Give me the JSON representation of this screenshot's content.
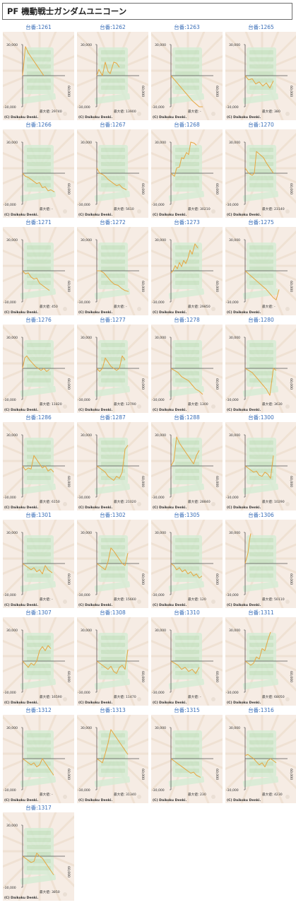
{
  "page": {
    "title": "PF 機動戦士ガンダムユニコーン"
  },
  "colors": {
    "line": "#e6a640",
    "background": "#f6ece4",
    "decor": "#d7ecd5",
    "label": "#3b6fb8",
    "axis": "#555555"
  },
  "panel_text": {
    "ymax_tick": "30,000",
    "ymin_tick": "-30,000",
    "x_tick": "60,000",
    "max_label": "最大値：",
    "copyright": "(C) Daikoku Denki."
  },
  "chart_data": [
    {
      "type": "line",
      "label": "台番:1261",
      "max_value": "29740",
      "ylim": [
        -30000,
        30000
      ],
      "xlim": [
        0,
        60000
      ],
      "x": [
        0,
        4000,
        8000,
        12000,
        16000,
        20000,
        26000,
        30000
      ],
      "y": [
        0,
        28000,
        22000,
        18000,
        14000,
        10000,
        4000,
        0
      ]
    },
    {
      "type": "line",
      "label": "台番:1262",
      "max_value": "13900",
      "ylim": [
        -30000,
        30000
      ],
      "xlim": [
        0,
        60000
      ],
      "x": [
        0,
        3000,
        8000,
        12000,
        16000,
        19000,
        24000,
        28000,
        32000
      ],
      "y": [
        0,
        6000,
        0,
        13000,
        4000,
        2000,
        13000,
        12000,
        8000
      ]
    },
    {
      "type": "line",
      "label": "台番:1263",
      "max_value": "-",
      "ylim": [
        -30000,
        30000
      ],
      "xlim": [
        0,
        60000
      ],
      "x": [
        0,
        10000,
        20000,
        30000,
        40000,
        45000
      ],
      "y": [
        0,
        -8000,
        -16000,
        -24000,
        -30000,
        -30000
      ]
    },
    {
      "type": "line",
      "label": "台番:1265",
      "max_value": "380",
      "ylim": [
        -30000,
        30000
      ],
      "xlim": [
        0,
        60000
      ],
      "x": [
        0,
        5000,
        10000,
        15000,
        20000,
        25000,
        30000,
        35000,
        40000
      ],
      "y": [
        0,
        -4000,
        -3000,
        -8000,
        -6000,
        -10000,
        -7000,
        -12000,
        -5000
      ]
    },
    {
      "type": "line",
      "label": "台番:1266",
      "max_value": "-",
      "ylim": [
        -30000,
        30000
      ],
      "xlim": [
        0,
        60000
      ],
      "x": [
        0,
        4000,
        8000,
        12000,
        16000,
        20000,
        24000,
        28000,
        32000,
        36000,
        40000,
        45000
      ],
      "y": [
        0,
        -3000,
        -4000,
        -6000,
        -8000,
        -10000,
        -9000,
        -14000,
        -13000,
        -17000,
        -16000,
        -18000
      ]
    },
    {
      "type": "line",
      "label": "台番:1267",
      "max_value": "5610",
      "ylim": [
        -30000,
        30000
      ],
      "xlim": [
        0,
        60000
      ],
      "x": [
        0,
        4000,
        8000,
        12000,
        16000,
        20000,
        24000,
        28000,
        32000,
        36000,
        42000
      ],
      "y": [
        5000,
        0,
        -1000,
        -3000,
        -6000,
        -8000,
        -10000,
        -12000,
        -11000,
        -14000,
        -16000
      ]
    },
    {
      "type": "line",
      "label": "台番:1268",
      "max_value": "30210",
      "ylim": [
        -30000,
        30000
      ],
      "xlim": [
        0,
        60000
      ],
      "x": [
        0,
        5000,
        8000,
        12000,
        15000,
        18000,
        22000,
        25000,
        28000,
        33000,
        36000
      ],
      "y": [
        0,
        -3000,
        5000,
        6000,
        15000,
        14000,
        20000,
        18000,
        30000,
        29000,
        27000
      ]
    },
    {
      "type": "line",
      "label": "台番:1270",
      "max_value": "23140",
      "ylim": [
        -30000,
        30000
      ],
      "xlim": [
        0,
        60000
      ],
      "x": [
        0,
        5000,
        10000,
        13000,
        16000,
        21000,
        26000,
        30000,
        35000,
        40000
      ],
      "y": [
        5000,
        0,
        -2000,
        0,
        21000,
        18000,
        15000,
        10000,
        5000,
        0
      ]
    },
    {
      "type": "line",
      "label": "台番:1271",
      "max_value": "450",
      "ylim": [
        -30000,
        30000
      ],
      "xlim": [
        0,
        60000
      ],
      "x": [
        0,
        4000,
        8000,
        12000,
        16000,
        20000,
        24000,
        28000,
        32000,
        38000
      ],
      "y": [
        0,
        -3000,
        -2000,
        -6000,
        -8000,
        -7000,
        -12000,
        -14000,
        -16000,
        -19000
      ]
    },
    {
      "type": "line",
      "label": "台番:1272",
      "max_value": "-",
      "ylim": [
        -30000,
        30000
      ],
      "xlim": [
        0,
        60000
      ],
      "x": [
        0,
        5000,
        10000,
        15000,
        20000,
        25000,
        30000,
        35000,
        40000,
        45000
      ],
      "y": [
        0,
        0,
        -2000,
        -6000,
        -10000,
        -13000,
        -14000,
        -17000,
        -19000,
        -20000
      ]
    },
    {
      "type": "line",
      "label": "台番:1273",
      "max_value": "29850",
      "ylim": [
        -30000,
        30000
      ],
      "xlim": [
        0,
        60000
      ],
      "x": [
        0,
        3000,
        6000,
        9000,
        12000,
        15000,
        18000,
        21000,
        24000,
        27000,
        30000,
        34000,
        38000
      ],
      "y": [
        -2000,
        0,
        5000,
        2000,
        8000,
        4000,
        10000,
        7000,
        12000,
        20000,
        16000,
        26000,
        22000
      ]
    },
    {
      "type": "line",
      "label": "台番:1275",
      "max_value": "-",
      "ylim": [
        -30000,
        30000
      ],
      "xlim": [
        0,
        60000
      ],
      "x": [
        0,
        10000,
        20000,
        30000,
        40000,
        44000,
        48000
      ],
      "y": [
        0,
        -6000,
        -12000,
        -18000,
        -26000,
        -28000,
        -18000
      ]
    },
    {
      "type": "line",
      "label": "台番:1276",
      "max_value": "11820",
      "ylim": [
        -30000,
        30000
      ],
      "xlim": [
        0,
        60000
      ],
      "x": [
        0,
        3000,
        6000,
        10000,
        14000,
        18000,
        22000,
        26000,
        30000,
        34000,
        38000
      ],
      "y": [
        0,
        10000,
        12000,
        8000,
        5000,
        2000,
        0,
        -2000,
        0,
        -3000,
        -1000
      ]
    },
    {
      "type": "line",
      "label": "台番:1277",
      "max_value": "12790",
      "ylim": [
        -30000,
        30000
      ],
      "xlim": [
        0,
        60000
      ],
      "x": [
        0,
        4000,
        8000,
        12000,
        16000,
        20000,
        24000,
        28000,
        32000,
        36000,
        40000
      ],
      "y": [
        0,
        -3000,
        0,
        10000,
        6000,
        2000,
        0,
        -2000,
        0,
        12000,
        8000
      ]
    },
    {
      "type": "line",
      "label": "台番:1278",
      "max_value": "1300",
      "ylim": [
        -30000,
        30000
      ],
      "xlim": [
        0,
        60000
      ],
      "x": [
        0,
        5000,
        10000,
        15000,
        20000,
        25000,
        30000,
        35000,
        40000,
        45000
      ],
      "y": [
        0,
        -2000,
        -4000,
        -8000,
        -10000,
        -12000,
        -16000,
        -20000,
        -22000,
        -25000
      ]
    },
    {
      "type": "line",
      "label": "台番:1280",
      "max_value": "3630",
      "ylim": [
        -30000,
        30000
      ],
      "xlim": [
        0,
        60000
      ],
      "x": [
        0,
        5000,
        10000,
        15000,
        20000,
        25000,
        30000,
        35000,
        40000,
        44000
      ],
      "y": [
        0,
        -2000,
        -4000,
        -8000,
        -12000,
        -16000,
        -20000,
        -26000,
        0,
        -2000
      ]
    },
    {
      "type": "line",
      "label": "台番:1286",
      "max_value": "6150",
      "ylim": [
        -30000,
        30000
      ],
      "xlim": [
        0,
        60000
      ],
      "x": [
        0,
        4000,
        8000,
        12000,
        16000,
        20000,
        24000,
        28000,
        32000,
        36000,
        40000,
        44000
      ],
      "y": [
        0,
        -4000,
        -2000,
        -3000,
        10000,
        6000,
        2000,
        -2000,
        0,
        -5000,
        -3000,
        -6000
      ]
    },
    {
      "type": "line",
      "label": "台番:1287",
      "max_value": "21020",
      "ylim": [
        -30000,
        30000
      ],
      "xlim": [
        0,
        60000
      ],
      "x": [
        0,
        4000,
        8000,
        12000,
        16000,
        20000,
        24000,
        28000,
        32000,
        36000,
        40000,
        44000
      ],
      "y": [
        0,
        -2000,
        -4000,
        -6000,
        -10000,
        -12000,
        -14000,
        -10000,
        -12000,
        -6000,
        16000,
        20000
      ]
    },
    {
      "type": "line",
      "label": "台番:1288",
      "max_value": "28840",
      "ylim": [
        -30000,
        30000
      ],
      "xlim": [
        0,
        60000
      ],
      "x": [
        0,
        4000,
        8000,
        12000,
        16000,
        20000,
        24000,
        28000,
        32000,
        36000,
        40000
      ],
      "y": [
        0,
        5000,
        28000,
        22000,
        18000,
        14000,
        10000,
        6000,
        2000,
        10000,
        15000
      ]
    },
    {
      "type": "line",
      "label": "台番:1300",
      "max_value": "10290",
      "ylim": [
        -30000,
        30000
      ],
      "xlim": [
        0,
        60000
      ],
      "x": [
        0,
        4000,
        8000,
        12000,
        16000,
        20000,
        24000,
        28000,
        32000,
        36000,
        40000
      ],
      "y": [
        0,
        -2000,
        -4000,
        -6000,
        -5000,
        -9000,
        -10000,
        -6000,
        -8000,
        -12000,
        10000
      ]
    },
    {
      "type": "line",
      "label": "台番:1301",
      "max_value": "-",
      "ylim": [
        -30000,
        30000
      ],
      "xlim": [
        0,
        60000
      ],
      "x": [
        0,
        4000,
        8000,
        12000,
        16000,
        20000,
        24000,
        28000,
        32000,
        36000,
        42000
      ],
      "y": [
        0,
        -2000,
        -4000,
        -6000,
        -4000,
        -8000,
        -6000,
        -10000,
        -2000,
        -6000,
        -9000
      ]
    },
    {
      "type": "line",
      "label": "台番:1302",
      "max_value": "15660",
      "ylim": [
        -30000,
        30000
      ],
      "xlim": [
        0,
        60000
      ],
      "x": [
        0,
        4000,
        8000,
        12000,
        16000,
        20000,
        24000,
        28000,
        32000,
        36000,
        40000,
        44000
      ],
      "y": [
        0,
        -2000,
        -4000,
        -6000,
        2000,
        15000,
        12000,
        8000,
        4000,
        0,
        -2000,
        10000
      ]
    },
    {
      "type": "line",
      "label": "台番:1305",
      "max_value": "120",
      "ylim": [
        -30000,
        30000
      ],
      "xlim": [
        0,
        60000
      ],
      "x": [
        0,
        4000,
        8000,
        12000,
        16000,
        20000,
        24000,
        28000,
        32000,
        36000,
        40000,
        44000
      ],
      "y": [
        0,
        -2000,
        -6000,
        -4000,
        -8000,
        -6000,
        -10000,
        -8000,
        -12000,
        -10000,
        -14000,
        -12000
      ]
    },
    {
      "type": "line",
      "label": "台番:1306",
      "max_value": "50110",
      "ylim": [
        -30000,
        30000
      ],
      "xlim": [
        0,
        60000
      ],
      "x": [
        0,
        2000,
        4000,
        6000,
        8000
      ],
      "y": [
        0,
        5000,
        10000,
        22000,
        29000
      ]
    },
    {
      "type": "line",
      "label": "台番:1307",
      "max_value": "16590",
      "ylim": [
        -30000,
        30000
      ],
      "xlim": [
        0,
        60000
      ],
      "x": [
        0,
        4000,
        8000,
        12000,
        16000,
        20000,
        24000,
        28000,
        32000,
        36000,
        40000
      ],
      "y": [
        0,
        -3000,
        -6000,
        -2000,
        -4000,
        0,
        10000,
        14000,
        10000,
        15000,
        12000
      ]
    },
    {
      "type": "line",
      "label": "台番:1308",
      "max_value": "11470",
      "ylim": [
        -30000,
        30000
      ],
      "xlim": [
        0,
        60000
      ],
      "x": [
        0,
        4000,
        8000,
        12000,
        16000,
        20000,
        24000,
        28000,
        32000,
        36000,
        40000,
        44000
      ],
      "y": [
        0,
        -2000,
        -4000,
        -6000,
        -8000,
        -5000,
        -10000,
        -12000,
        -6000,
        -4000,
        -8000,
        11000
      ]
    },
    {
      "type": "line",
      "label": "台番:1310",
      "max_value": "-",
      "ylim": [
        -30000,
        30000
      ],
      "xlim": [
        0,
        60000
      ],
      "x": [
        0,
        5000,
        10000,
        15000,
        20000,
        25000,
        30000,
        35000,
        40000
      ],
      "y": [
        0,
        -2000,
        -4000,
        -8000,
        -6000,
        -10000,
        -8000,
        -12000,
        -6000
      ]
    },
    {
      "type": "line",
      "label": "台番:1311",
      "max_value": "68050",
      "ylim": [
        -30000,
        30000
      ],
      "xlim": [
        0,
        60000
      ],
      "x": [
        0,
        4000,
        8000,
        12000,
        16000,
        20000,
        24000,
        28000,
        32000,
        36000
      ],
      "y": [
        0,
        -2000,
        -4000,
        -2000,
        4000,
        2000,
        12000,
        10000,
        20000,
        28000
      ]
    },
    {
      "type": "line",
      "label": "台番:1312",
      "max_value": "-",
      "ylim": [
        -30000,
        30000
      ],
      "xlim": [
        0,
        60000
      ],
      "x": [
        0,
        4000,
        8000,
        12000,
        16000,
        20000,
        24000,
        28000,
        32000,
        36000,
        40000,
        44000
      ],
      "y": [
        0,
        -2000,
        -4000,
        -6000,
        -4000,
        -8000,
        -6000,
        0,
        -4000,
        -8000,
        -12000,
        -16000
      ]
    },
    {
      "type": "line",
      "label": "台番:1313",
      "max_value": "31340",
      "ylim": [
        -30000,
        30000
      ],
      "xlim": [
        0,
        60000
      ],
      "x": [
        0,
        4000,
        8000,
        12000,
        16000,
        20000,
        24000,
        28000,
        32000,
        36000,
        40000,
        44000
      ],
      "y": [
        0,
        -2000,
        -4000,
        5000,
        15000,
        28000,
        24000,
        20000,
        16000,
        12000,
        8000,
        4000
      ]
    },
    {
      "type": "line",
      "label": "台番:1315",
      "max_value": "230",
      "ylim": [
        -30000,
        30000
      ],
      "xlim": [
        0,
        60000
      ],
      "x": [
        0,
        4000,
        8000,
        12000,
        16000,
        20000,
        24000,
        28000,
        32000,
        36000,
        42000
      ],
      "y": [
        0,
        -2000,
        -4000,
        -6000,
        -8000,
        -10000,
        -12000,
        -14000,
        -13000,
        -16000,
        -18000
      ]
    },
    {
      "type": "line",
      "label": "台番:1316",
      "max_value": "4230",
      "ylim": [
        -30000,
        30000
      ],
      "xlim": [
        0,
        60000
      ],
      "x": [
        0,
        4000,
        8000,
        12000,
        16000,
        20000,
        24000,
        28000,
        32000,
        36000,
        40000,
        44000
      ],
      "y": [
        3000,
        4000,
        2000,
        0,
        -3000,
        -6000,
        -4000,
        -8000,
        -2000,
        0,
        -2000,
        -4000
      ]
    },
    {
      "type": "line",
      "label": "台番:1317",
      "max_value": "3850",
      "ylim": [
        -30000,
        30000
      ],
      "xlim": [
        0,
        60000
      ],
      "x": [
        0,
        4000,
        8000,
        12000,
        16000,
        20000,
        24000,
        28000,
        32000,
        36000,
        40000,
        44000
      ],
      "y": [
        0,
        -2000,
        -4000,
        -6000,
        -5000,
        3000,
        0,
        -2000,
        -6000,
        -10000,
        -14000,
        -18000
      ]
    }
  ]
}
